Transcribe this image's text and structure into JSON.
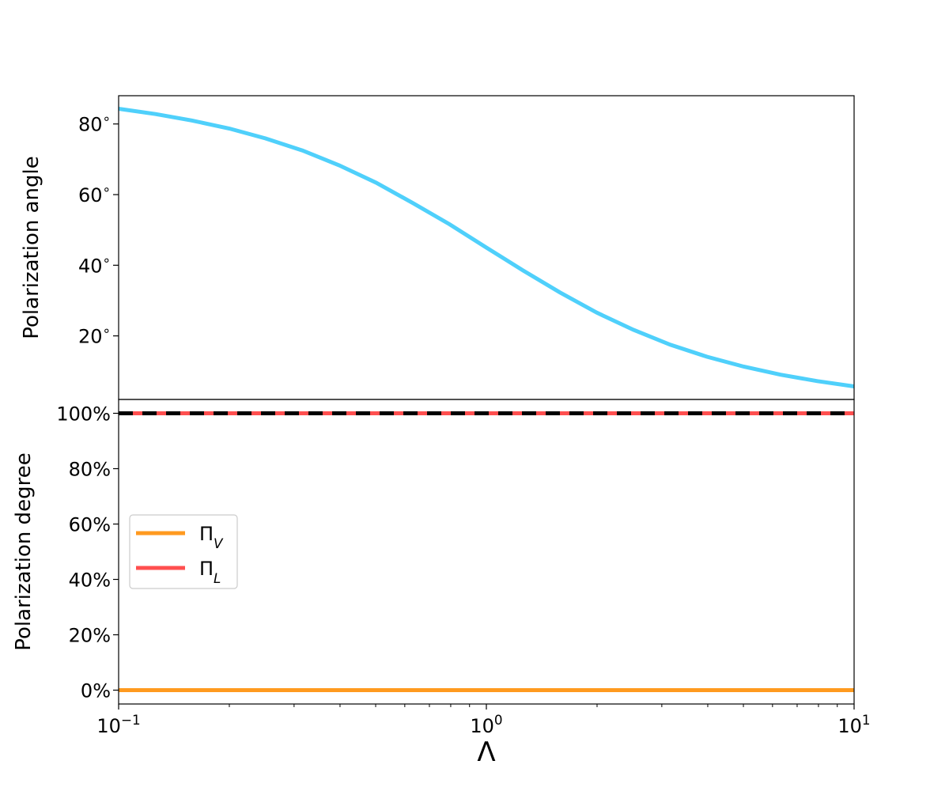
{
  "chart_data": [
    {
      "type": "line",
      "panel": "top",
      "xscale": "log",
      "xlim": [
        0.1,
        10
      ],
      "ylim": [
        2,
        88
      ],
      "ylabel": "Polarization angle",
      "yticks": [
        20,
        40,
        60,
        80
      ],
      "yticklabels": [
        "20$^\\circ$",
        "40$^\\circ$",
        "60$^\\circ$",
        "80$^\\circ$"
      ],
      "series": [
        {
          "color": "#4fd0fb",
          "x": [
            0.1,
            0.126,
            0.158,
            0.2,
            0.251,
            0.316,
            0.398,
            0.501,
            0.631,
            0.794,
            1.0,
            1.259,
            1.585,
            1.995,
            2.512,
            3.162,
            3.981,
            5.012,
            6.31,
            7.943,
            10.0
          ],
          "y": [
            84.3,
            82.8,
            81.0,
            78.7,
            75.9,
            72.5,
            68.3,
            63.4,
            57.6,
            51.6,
            45.0,
            38.5,
            32.3,
            26.6,
            21.7,
            17.5,
            14.1,
            11.3,
            9.0,
            7.2,
            5.7
          ]
        }
      ],
      "grid": false
    },
    {
      "type": "line",
      "panel": "bottom",
      "xscale": "log",
      "xlim": [
        0.1,
        10
      ],
      "ylim": [
        -0.05,
        1.05
      ],
      "ylabel": "Polarization degree",
      "xlabel": "$\\Lambda$",
      "yticks": [
        0,
        0.2,
        0.4,
        0.6,
        0.8,
        1.0
      ],
      "yticklabels": [
        "0%",
        "20%",
        "40%",
        "60%",
        "80%",
        "100%"
      ],
      "xticks": [
        0.1,
        1,
        10
      ],
      "xticklabels": [
        "10$^{-1}$",
        "10$^{0}$",
        "10$^{1}$"
      ],
      "series": [
        {
          "name": "Π_V",
          "color": "#ff9a1f",
          "style": "solid",
          "x": [
            0.1,
            10
          ],
          "y": [
            0,
            0
          ]
        },
        {
          "name": "Π_L",
          "color": "#ff4f4f",
          "style": "solid",
          "x": [
            0.1,
            10
          ],
          "y": [
            1,
            1
          ]
        },
        {
          "color": "#000000",
          "style": "dashed",
          "x": [
            0.1,
            10
          ],
          "y": [
            1,
            1
          ]
        }
      ],
      "legend": {
        "position": "center-left",
        "entries": [
          {
            "base": "Π",
            "sub": "V",
            "color": "#ff9a1f"
          },
          {
            "base": "Π",
            "sub": "L",
            "color": "#ff4f4f"
          }
        ]
      },
      "grid": false
    }
  ]
}
